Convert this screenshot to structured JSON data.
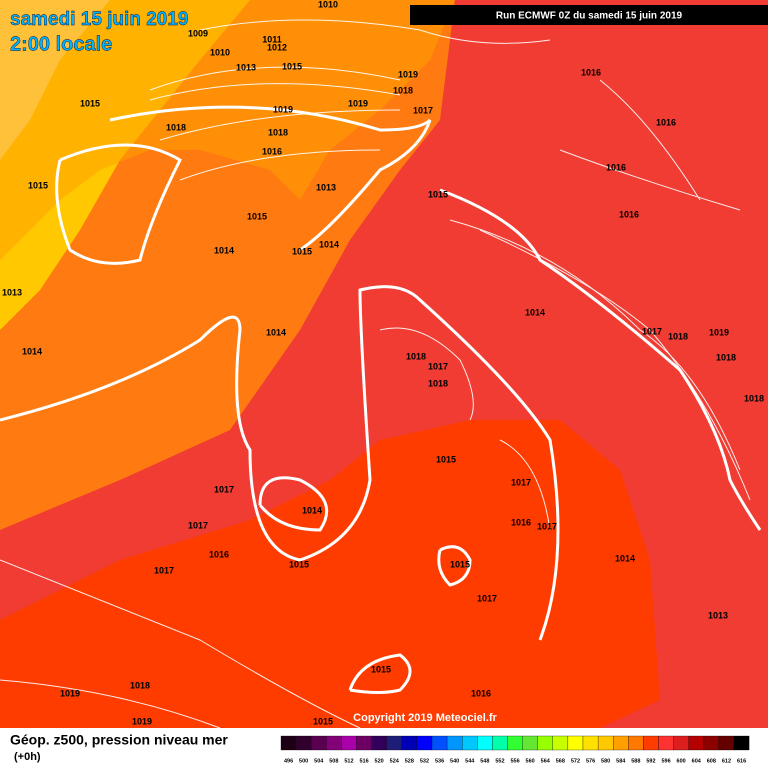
{
  "header": {
    "title": "samedi 15 juin 2019",
    "time": "2:00 locale",
    "run": "Run ECMWF 0Z du samedi 15 juin 2019"
  },
  "copyright": "Copyright 2019 Meteociel.fr",
  "footer": {
    "title": "Géop. z500, pression niveau mer",
    "step": "(+0h)"
  },
  "legend": {
    "items": [
      {
        "label": 496,
        "color": "#1e0014"
      },
      {
        "label": 500,
        "color": "#32002d"
      },
      {
        "label": 504,
        "color": "#5a0050"
      },
      {
        "label": 508,
        "color": "#820078"
      },
      {
        "label": 512,
        "color": "#aa00aa"
      },
      {
        "label": 516,
        "color": "#6e0064"
      },
      {
        "label": 520,
        "color": "#32005a"
      },
      {
        "label": 524,
        "color": "#1e1e78"
      },
      {
        "label": 528,
        "color": "#0000b4"
      },
      {
        "label": 532,
        "color": "#0000ff"
      },
      {
        "label": 536,
        "color": "#0050ff"
      },
      {
        "label": 540,
        "color": "#0096ff"
      },
      {
        "label": 544,
        "color": "#00c8ff"
      },
      {
        "label": 548,
        "color": "#00ffff"
      },
      {
        "label": 552,
        "color": "#00ffaa"
      },
      {
        "label": 556,
        "color": "#32ff32"
      },
      {
        "label": 560,
        "color": "#64e632"
      },
      {
        "label": 564,
        "color": "#96ff00"
      },
      {
        "label": 568,
        "color": "#c8ff00"
      },
      {
        "label": 572,
        "color": "#ffff00"
      },
      {
        "label": 576,
        "color": "#ffe100"
      },
      {
        "label": 580,
        "color": "#ffc800"
      },
      {
        "label": 584,
        "color": "#ffa000"
      },
      {
        "label": 588,
        "color": "#ff7800"
      },
      {
        "label": 592,
        "color": "#ff3c00"
      },
      {
        "label": 596,
        "color": "#ff3232"
      },
      {
        "label": 600,
        "color": "#dc1e1e"
      },
      {
        "label": 604,
        "color": "#b40000"
      },
      {
        "label": 608,
        "color": "#8c0000"
      },
      {
        "label": 612,
        "color": "#640000"
      },
      {
        "label": 616,
        "color": "#000000"
      }
    ]
  },
  "isobar_labels": [
    1010,
    1009,
    1010,
    1011,
    1012,
    1013,
    1015,
    1019,
    1018,
    1019,
    1017,
    1019,
    1015,
    1018,
    1018,
    1016,
    1015,
    1013,
    1015,
    1015,
    1014,
    1014,
    1015,
    1013,
    1014,
    1014,
    1014,
    1016,
    1016,
    1016,
    1016,
    1017,
    1018,
    1019,
    1018,
    1018,
    1018,
    1017,
    1018,
    1015,
    1017,
    1017,
    1016,
    1014,
    1017,
    1016,
    1017,
    1014,
    1015,
    1015,
    1017,
    1017,
    1013,
    1015,
    1018,
    1019,
    1016,
    1019,
    1015
  ]
}
